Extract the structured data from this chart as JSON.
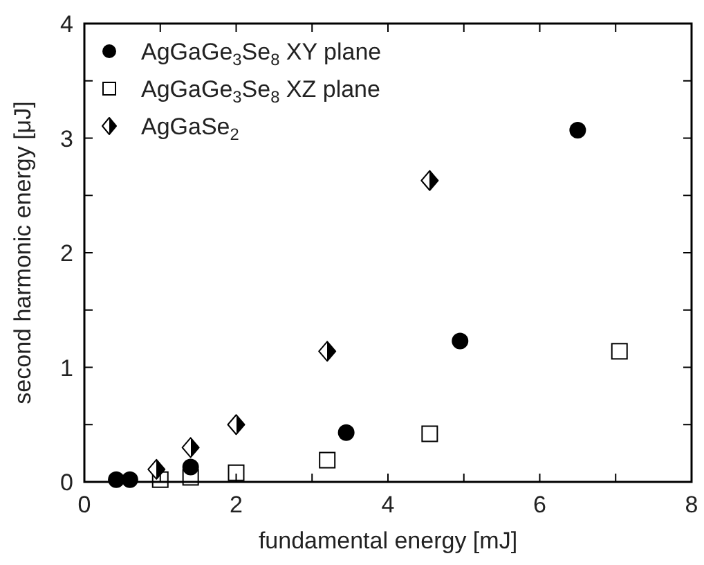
{
  "chart_data": {
    "type": "scatter",
    "xlabel": "fundamental energy [mJ]",
    "ylabel": "second harmonic energy [μJ]",
    "xlim": [
      0,
      8
    ],
    "ylim": [
      0,
      4
    ],
    "xticks": [
      0,
      {
        "value": 1,
        "label": null
      },
      2,
      {
        "value": 3,
        "label": null
      },
      4,
      {
        "value": 5,
        "label": null
      },
      6,
      {
        "value": 7,
        "label": null
      },
      8
    ],
    "yticks": [
      0,
      {
        "value": 0.5,
        "label": null
      },
      1,
      {
        "value": 1.5,
        "label": null
      },
      2,
      {
        "value": 2.5,
        "label": null
      },
      3,
      {
        "value": 3.5,
        "label": null
      },
      4
    ],
    "legend": "top left",
    "grid": false,
    "series": [
      {
        "name": "AgGaGe$_{3}$Se$_{8}$ XY plane",
        "color": "#000000",
        "marker": "circle",
        "x": [
          0.42,
          0.6,
          1.4,
          3.45,
          4.95,
          6.5
        ],
        "values": [
          0.02,
          0.02,
          0.13,
          0.43,
          1.23,
          3.07
        ]
      },
      {
        "name": "AgGaGe$_{3}$Se$_{8}$ XZ plane",
        "color": "#000000",
        "marker": "square",
        "x": [
          1.0,
          1.4,
          2.0,
          3.2,
          4.55,
          7.05
        ],
        "values": [
          0.02,
          0.04,
          0.08,
          0.19,
          0.42,
          1.14
        ]
      },
      {
        "name": "AgGaSe$_{2}$",
        "color": "#000000",
        "marker": "diamond",
        "x": [
          0.95,
          1.4,
          2.0,
          3.2,
          4.55
        ],
        "values": [
          0.11,
          0.3,
          0.5,
          1.14,
          2.63
        ]
      }
    ]
  }
}
